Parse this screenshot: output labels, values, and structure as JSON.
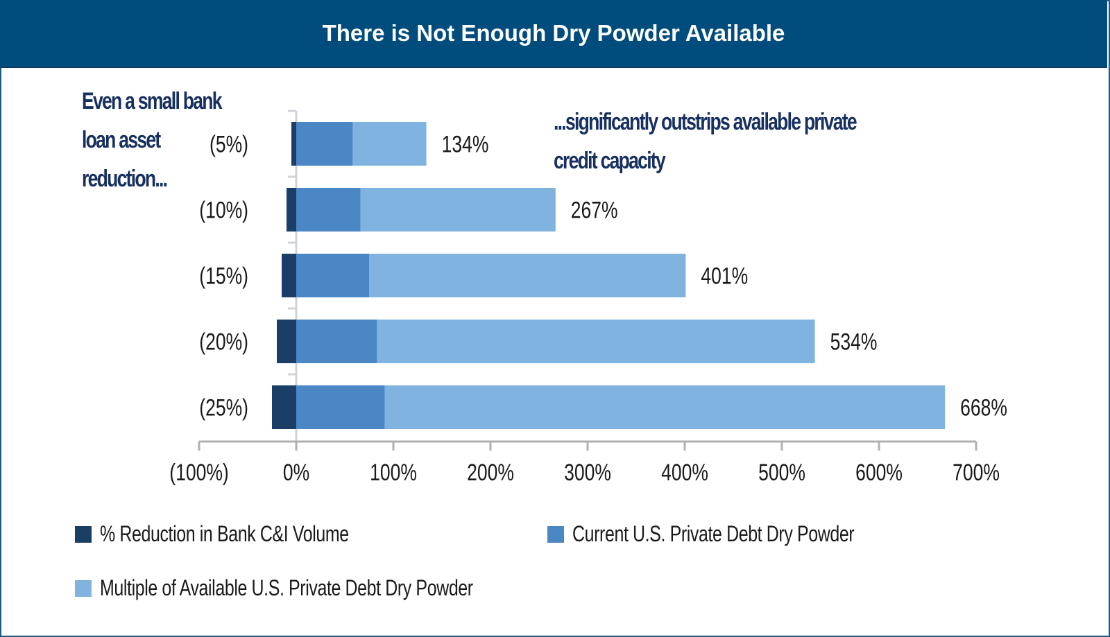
{
  "header": {
    "title": "There is Not Enough Dry Powder Available"
  },
  "annotations": {
    "left_lines": [
      "Even a small bank",
      "loan asset",
      "reduction..."
    ],
    "right_lines": [
      "...significantly outstrips available private",
      "credit capacity"
    ]
  },
  "colors": {
    "header_bg": "#004d7d",
    "annotation_text": "#17305f",
    "reduction": "#1b3e66",
    "current": "#4a87c4",
    "multiple": "#80b3e0",
    "axis": "#b0b0b0"
  },
  "chart_data": {
    "type": "bar",
    "orientation": "horizontal",
    "stacked": true,
    "title": "There is Not Enough Dry Powder Available",
    "categories": [
      "(5%)",
      "(10%)",
      "(15%)",
      "(20%)",
      "(25%)"
    ],
    "series": [
      {
        "name": "% Reduction in Bank C&I Volume",
        "color": "#1b3e66",
        "values": [
          -5,
          -10,
          -15,
          -20,
          -25
        ]
      },
      {
        "name": "Current U.S. Private Debt Dry Powder",
        "color": "#4a87c4",
        "values": [
          58,
          66,
          75,
          83,
          91
        ]
      },
      {
        "name": "Multiple of Available U.S. Private Debt Dry Powder",
        "color": "#80b3e0",
        "values": [
          134,
          267,
          401,
          534,
          668
        ]
      }
    ],
    "data_labels": [
      "134%",
      "267%",
      "401%",
      "534%",
      "668%"
    ],
    "xlim": [
      -100,
      700
    ],
    "xticks": [
      -100,
      0,
      100,
      200,
      300,
      400,
      500,
      600,
      700
    ],
    "xtick_labels": [
      "(100%)",
      "0%",
      "100%",
      "200%",
      "300%",
      "400%",
      "500%",
      "600%",
      "700%"
    ],
    "xlabel": "",
    "ylabel": "",
    "grid": false,
    "legend_position": "bottom"
  },
  "legend": [
    {
      "label": "% Reduction in Bank C&I Volume",
      "color": "#1b3e66"
    },
    {
      "label": "Current U.S. Private Debt Dry Powder",
      "color": "#4a87c4"
    },
    {
      "label": "Multiple of Available U.S. Private Debt Dry Powder",
      "color": "#80b3e0"
    }
  ]
}
